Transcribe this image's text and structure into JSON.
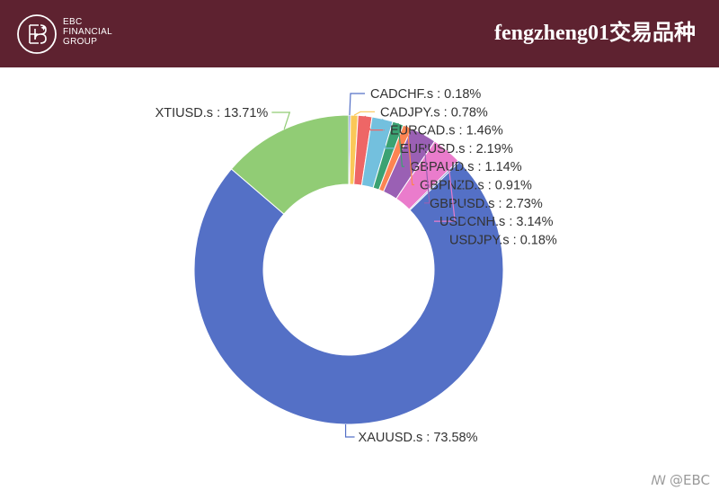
{
  "header": {
    "brand_lines": [
      "EBC",
      "FINANCIAL",
      "GROUP"
    ],
    "title": "fengzheng01交易品种"
  },
  "watermark": "@EBC",
  "colors": {
    "header_bg": "#5e2230",
    "label_text": "#333333"
  },
  "chart_data": {
    "type": "pie",
    "style": "donut",
    "title": "",
    "slices": [
      {
        "name": "CADCHF.s",
        "value": 0.18,
        "label": "CADCHF.s : 0.18%",
        "color": "#5470c6"
      },
      {
        "name": "CADJPY.s",
        "value": 0.78,
        "label": "CADJPY.s : 0.78%",
        "color": "#fac858"
      },
      {
        "name": "EURCAD.s",
        "value": 1.46,
        "label": "EURCAD.s : 1.46%",
        "color": "#ee6666"
      },
      {
        "name": "EURUSD.s",
        "value": 2.19,
        "label": "EURUSD.s : 2.19%",
        "color": "#73c0de"
      },
      {
        "name": "GBPAUD.s",
        "value": 1.14,
        "label": "GBPAUD.s : 1.14%",
        "color": "#3ba272"
      },
      {
        "name": "GBPNZD.s",
        "value": 0.91,
        "label": "GBPNZD.s : 0.91%",
        "color": "#fc8452"
      },
      {
        "name": "GBPUSD.s",
        "value": 2.73,
        "label": "GBPUSD.s : 2.73%",
        "color": "#9a60b4"
      },
      {
        "name": "USDCNH.s",
        "value": 3.14,
        "label": "USDCNH.s : 3.14%",
        "color": "#ea7ccc"
      },
      {
        "name": "USDJPY.s",
        "value": 0.18,
        "label": "USDJPY.s : 0.18%",
        "color": "#5470c6"
      },
      {
        "name": "XAUUSD.s",
        "value": 73.58,
        "label": "XAUUSD.s : 73.58%",
        "color": "#5470c6"
      },
      {
        "name": "XTIUSD.s",
        "value": 13.71,
        "label": "XTIUSD.s : 13.71%",
        "color": "#91cc75"
      }
    ]
  }
}
